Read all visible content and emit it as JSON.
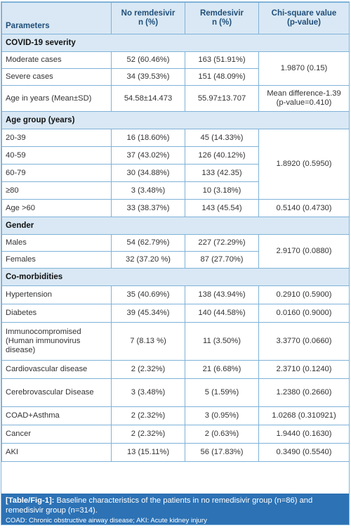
{
  "header": {
    "col1": "Parameters",
    "col2_line1": "No remdesivir",
    "col2_line2": "n (%)",
    "col3_line1": "Remdesivir",
    "col3_line2": "n (%)",
    "col4_line1": "Chi-square value",
    "col4_line2": "(p-value)"
  },
  "sections": {
    "covid": "COVID-19 severity",
    "age": "Age group (years)",
    "gender": "Gender",
    "comorb": "Co-morbidities"
  },
  "rows": {
    "moderate": {
      "label": "Moderate cases",
      "no": "52 (60.46%)",
      "rem": "163 (51.91%)"
    },
    "severe": {
      "label": "Severe cases",
      "no": "34 (39.53%)",
      "rem": "151 (48.09%)"
    },
    "severity_stat": "1.9870 (0.15)",
    "age_years": {
      "label": "Age in years (Mean±SD)",
      "no": "54.58±14.473",
      "rem": "55.97±13.707",
      "stat": "Mean difference-1.39 (p-value=0.410)"
    },
    "a2039": {
      "label": "20-39",
      "no": "16 (18.60%)",
      "rem": "45 (14.33%)"
    },
    "a4059": {
      "label": "40-59",
      "no": "37 (43.02%)",
      "rem": "126 (40.12%)"
    },
    "a6079": {
      "label": "60-79",
      "no": "30 (34.88%)",
      "rem": "133 (42.35)"
    },
    "a80": {
      "label": "≥80",
      "no": "3 (3.48%)",
      "rem": "10 (3.18%)"
    },
    "agegroup_stat": "1.8920 (0.5950)",
    "age60": {
      "label": "Age >60",
      "no": "33 (38.37%)",
      "rem": "143 (45.54)",
      "stat": "0.5140 (0.4730)"
    },
    "males": {
      "label": "Males",
      "no": "54 (62.79%)",
      "rem": "227 (72.29%)"
    },
    "females": {
      "label": "Females",
      "no": "32 (37.20 %)",
      "rem": "87 (27.70%)"
    },
    "gender_stat": "2.9170 (0.0880)",
    "hypertension": {
      "label": "Hypertension",
      "no": "35 (40.69%)",
      "rem": "138 (43.94%)",
      "stat": "0.2910 (0.5900)"
    },
    "diabetes": {
      "label": "Diabetes",
      "no": "39 (45.34%)",
      "rem": "140 (44.58%)",
      "stat": "0.0160 (0.9000)"
    },
    "immuno": {
      "label": "Immunocompromised (Human immunovirus disease)",
      "no": "7 (8.13 %)",
      "rem": "11 (3.50%)",
      "stat": "3.3770 (0.0660)"
    },
    "cardio": {
      "label": "Cardiovascular disease",
      "no": "2 (2.32%)",
      "rem": "21 (6.68%)",
      "stat": "2.3710 (0.1240)"
    },
    "cerebro": {
      "label": "Cerebrovascular Disease",
      "no": "3 (3.48%)",
      "rem": "5 (1.59%)",
      "stat": "1.2380 (0.2660)"
    },
    "coad": {
      "label": "COAD+Asthma",
      "no": "2 (2.32%)",
      "rem": "3 (0.95%)",
      "stat": "1.0268 (0.310921)"
    },
    "cancer": {
      "label": "Cancer",
      "no": "2 (2.32%)",
      "rem": "2 (0.63%)",
      "stat": "1.9440 (0.1630)"
    },
    "aki": {
      "label": "AKI",
      "no": "13 (15.11%)",
      "rem": "56 (17.83%)",
      "stat": "0.3490 (0.5540)"
    }
  },
  "caption": {
    "tag": "[Table/Fig-1]:",
    "text": "Baseline characteristics of the patients in no remedisivir group (n=86) and remedisivir group (n=314).",
    "note": "COAD: Chronic obstructive airway disease; AKI: Acute kidney injury"
  },
  "colors": {
    "header_bg": "#d9e8f4",
    "border": "#7fb2d8",
    "header_text": "#1f4e79",
    "caption_bg": "#2c72b5"
  }
}
